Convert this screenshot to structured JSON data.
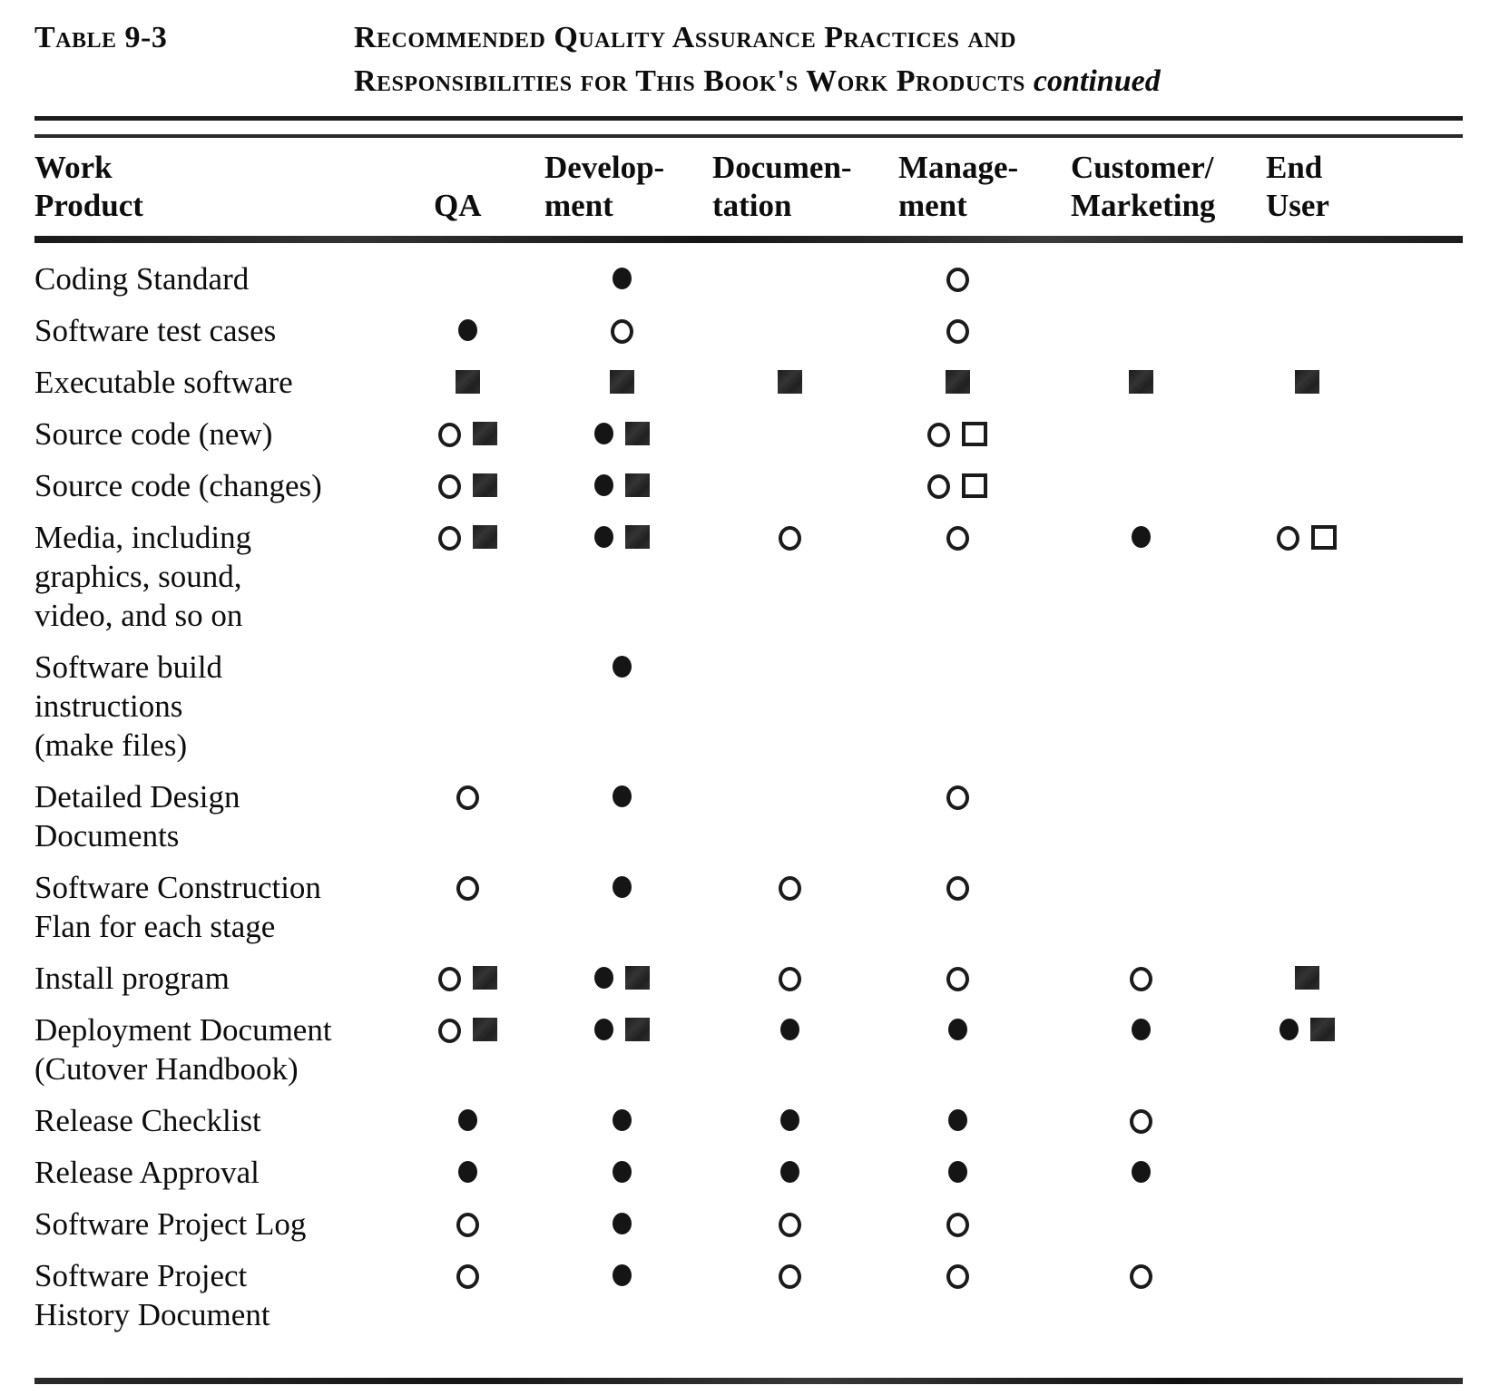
{
  "caption": {
    "label": "Table 9-3",
    "title_line1": "Recommended Quality Assurance Practices and",
    "title_line2": "Responsibilities for This Book's Work Products",
    "continued": "continued"
  },
  "symbol_glyphs": {
    "filled-circle": "●",
    "open-circle": "○",
    "filled-square": "■",
    "open-square": "□"
  },
  "ink_color": "#0d0d0d",
  "table": {
    "columns": [
      {
        "id": "work-product",
        "line1": "Work",
        "line2": "Product"
      },
      {
        "id": "qa",
        "line1": "",
        "line2": "QA"
      },
      {
        "id": "development",
        "line1": "Develop-",
        "line2": "ment"
      },
      {
        "id": "documentation",
        "line1": "Documen-",
        "line2": "tation"
      },
      {
        "id": "management",
        "line1": "Manage-",
        "line2": "ment"
      },
      {
        "id": "customer-marketing",
        "line1": "Customer/",
        "line2": "Marketing"
      },
      {
        "id": "end-user",
        "line1": "End",
        "line2": "User"
      }
    ],
    "rows": [
      {
        "label": [
          "Coding Standard"
        ],
        "cells": [
          [],
          [
            "filled-circle"
          ],
          [],
          [
            "open-circle"
          ],
          [],
          []
        ]
      },
      {
        "label": [
          "Software test cases"
        ],
        "cells": [
          [
            "filled-circle"
          ],
          [
            "open-circle"
          ],
          [],
          [
            "open-circle"
          ],
          [],
          []
        ]
      },
      {
        "label": [
          "Executable software"
        ],
        "cells": [
          [
            "filled-square"
          ],
          [
            "filled-square"
          ],
          [
            "filled-square"
          ],
          [
            "filled-square"
          ],
          [
            "filled-square"
          ],
          [
            "filled-square"
          ]
        ]
      },
      {
        "label": [
          "Source code (new)"
        ],
        "cells": [
          [
            "open-circle",
            "filled-square"
          ],
          [
            "filled-circle",
            "filled-square"
          ],
          [],
          [
            "open-circle",
            "open-square"
          ],
          [],
          []
        ]
      },
      {
        "label": [
          "Source code (changes)"
        ],
        "cells": [
          [
            "open-circle",
            "filled-square"
          ],
          [
            "filled-circle",
            "filled-square"
          ],
          [],
          [
            "open-circle",
            "open-square"
          ],
          [],
          []
        ]
      },
      {
        "label": [
          "Media, including",
          "graphics, sound,",
          "video, and so on"
        ],
        "cells": [
          [
            "open-circle",
            "filled-square"
          ],
          [
            "filled-circle",
            "filled-square"
          ],
          [
            "open-circle"
          ],
          [
            "open-circle"
          ],
          [
            "filled-circle"
          ],
          [
            "open-circle",
            "open-square"
          ]
        ]
      },
      {
        "label": [
          "Software build",
          "instructions",
          "(make files)"
        ],
        "cells": [
          [],
          [
            "filled-circle"
          ],
          [],
          [],
          [],
          []
        ]
      },
      {
        "label": [
          "Detailed Design",
          "Documents"
        ],
        "cells": [
          [
            "open-circle"
          ],
          [
            "filled-circle"
          ],
          [],
          [
            "open-circle"
          ],
          [],
          []
        ]
      },
      {
        "label": [
          "Software Construction",
          "Flan for each stage"
        ],
        "cells": [
          [
            "open-circle"
          ],
          [
            "filled-circle"
          ],
          [
            "open-circle"
          ],
          [
            "open-circle"
          ],
          [],
          []
        ]
      },
      {
        "label": [
          "Install program"
        ],
        "cells": [
          [
            "open-circle",
            "filled-square"
          ],
          [
            "filled-circle",
            "filled-square"
          ],
          [
            "open-circle"
          ],
          [
            "open-circle"
          ],
          [
            "open-circle"
          ],
          [
            "filled-square"
          ]
        ]
      },
      {
        "label": [
          "Deployment Document",
          "(Cutover Handbook)"
        ],
        "cells": [
          [
            "open-circle",
            "filled-square"
          ],
          [
            "filled-circle",
            "filled-square"
          ],
          [
            "filled-circle"
          ],
          [
            "filled-circle"
          ],
          [
            "filled-circle"
          ],
          [
            "filled-circle",
            "filled-square"
          ]
        ]
      },
      {
        "label": [
          "Release Checklist"
        ],
        "cells": [
          [
            "filled-circle"
          ],
          [
            "filled-circle"
          ],
          [
            "filled-circle"
          ],
          [
            "filled-circle"
          ],
          [
            "open-circle"
          ],
          []
        ]
      },
      {
        "label": [
          "Release Approval"
        ],
        "cells": [
          [
            "filled-circle"
          ],
          [
            "filled-circle"
          ],
          [
            "filled-circle"
          ],
          [
            "filled-circle"
          ],
          [
            "filled-circle"
          ],
          []
        ]
      },
      {
        "label": [
          "Software Project Log"
        ],
        "cells": [
          [
            "open-circle"
          ],
          [
            "filled-circle"
          ],
          [
            "open-circle"
          ],
          [
            "open-circle"
          ],
          [],
          []
        ]
      },
      {
        "label": [
          "Software Project",
          "History Document"
        ],
        "cells": [
          [
            "open-circle"
          ],
          [
            "filled-circle"
          ],
          [
            "open-circle"
          ],
          [
            "open-circle"
          ],
          [
            "open-circle"
          ],
          []
        ]
      }
    ]
  }
}
